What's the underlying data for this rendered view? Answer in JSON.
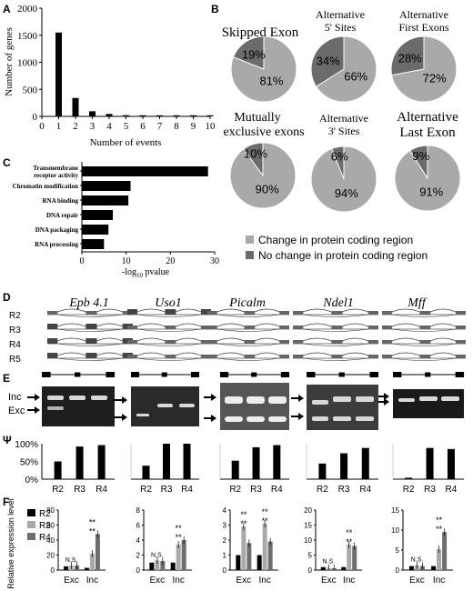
{
  "colors": {
    "bar": "#000000",
    "pie_light": "#a9a9a9",
    "pie_dark": "#6b6b6b",
    "gel_bg": "#1e1e1e",
    "series_R2": "#000000",
    "series_R3": "#a9a9a9",
    "series_R4": "#6e6e6e"
  },
  "panel_labels": [
    "A",
    "B",
    "C",
    "D",
    "E",
    "Ψ",
    "F"
  ],
  "panelA": {
    "chart_data": {
      "type": "bar",
      "categories": [
        "1",
        "2",
        "3",
        "4",
        "5",
        "6",
        "7",
        "8",
        "9",
        "10"
      ],
      "values": [
        1550,
        340,
        95,
        45,
        22,
        12,
        8,
        5,
        3,
        2
      ],
      "xticks": [
        "0",
        "1",
        "2",
        "3",
        "4",
        "5",
        "6",
        "7",
        "8",
        "9",
        "10"
      ],
      "xlabel": "Number of events",
      "ylabel": "Number of genes",
      "yticks": [
        "0",
        "500",
        "1000",
        "1500",
        "2000"
      ],
      "ylim": [
        0,
        2000
      ],
      "xlim": [
        0,
        10
      ]
    }
  },
  "panelB": {
    "chart_data": {
      "type": "pie",
      "charts": [
        {
          "title": "Skipped Exon",
          "changed": 81,
          "unchanged": 19,
          "changed_label": "81%",
          "unchanged_label": "19%"
        },
        {
          "title_lines": [
            "Alternative",
            "5' Sites"
          ],
          "changed": 66,
          "unchanged": 34,
          "changed_label": "66%",
          "unchanged_label": "34%"
        },
        {
          "title_lines": [
            "Alternative",
            "First Exons"
          ],
          "changed": 72,
          "unchanged": 28,
          "changed_label": "72%",
          "unchanged_label": "28%"
        },
        {
          "title_lines": [
            "Mutually",
            "exclusive exons"
          ],
          "changed": 90,
          "unchanged": 10,
          "changed_label": "90%",
          "unchanged_label": "10%"
        },
        {
          "title_lines": [
            "Alternative",
            "3' Sites"
          ],
          "changed": 94,
          "unchanged": 6,
          "changed_label": "94%",
          "unchanged_label": "6%"
        },
        {
          "title_lines": [
            "Alternative",
            "Last Exon"
          ],
          "changed": 91,
          "unchanged": 9,
          "changed_label": "91%",
          "unchanged_label": "9%"
        }
      ],
      "legend": [
        "Change in protein coding region",
        "No change in protein coding region"
      ]
    }
  },
  "panelC": {
    "chart_data": {
      "type": "bar",
      "orientation": "horizontal",
      "categories": [
        "Transmembrane receptor activity",
        "Chromatin modification",
        "RNA binding",
        "DNA repair",
        "DNA packaging",
        "RNA processing"
      ],
      "category_lines": [
        [
          "Transmembrane",
          "receptor activity"
        ],
        [
          "Chromatin modification"
        ],
        [
          "RNA binding"
        ],
        [
          "DNA repair"
        ],
        [
          "DNA packaging"
        ],
        [
          "RNA processing"
        ]
      ],
      "values": [
        28.5,
        11,
        10.5,
        7,
        6,
        5
      ],
      "xticks": [
        "0",
        "10",
        "20",
        "30"
      ],
      "xlim": [
        0,
        30
      ],
      "xlabel_prefix": "-log",
      "xlabel_sub": "10",
      "xlabel_suffix": " pvalue"
    }
  },
  "panelD": {
    "genes": [
      "Epb 4.1",
      "Uso1",
      "Picalm",
      "Ndel1",
      "Mff"
    ],
    "rows": [
      "R2",
      "R3",
      "R4",
      "R5"
    ]
  },
  "panelE": {
    "inc_label": "Inc",
    "exc_label": "Exc"
  },
  "panelPsi": {
    "chart_data": {
      "type": "bar",
      "categories": [
        "R2",
        "R3",
        "R4"
      ],
      "yticks": [
        "0%",
        "50%",
        "100%"
      ],
      "ylim": [
        0,
        100
      ],
      "series": [
        {
          "values": [
            50,
            92,
            96
          ]
        },
        {
          "values": [
            38,
            100,
            100
          ]
        },
        {
          "values": [
            52,
            90,
            96
          ]
        },
        {
          "values": [
            44,
            73,
            88
          ]
        },
        {
          "values": [
            4,
            88,
            85
          ]
        }
      ]
    }
  },
  "panelF": {
    "ylabel": "Relative expression level",
    "legend": [
      "R2",
      "R3",
      "R4"
    ],
    "groups": [
      "Exc",
      "Inc"
    ],
    "ns": "N.S.",
    "sig": "**",
    "chart_data": {
      "type": "bar",
      "subplots": [
        {
          "yticks": [
            "0",
            "20",
            "40",
            "60",
            "80"
          ],
          "ylim": [
            0,
            80
          ],
          "Exc": [
            5,
            6,
            6
          ],
          "Inc": [
            3,
            22,
            48
          ]
        },
        {
          "yticks": [
            "0",
            "2",
            "4",
            "6",
            "8"
          ],
          "ylim": [
            0,
            8
          ],
          "Exc": [
            1,
            1.3,
            1.2
          ],
          "Inc": [
            1,
            3.4,
            4
          ]
        },
        {
          "yticks": [
            "0",
            "1",
            "2",
            "3",
            "4"
          ],
          "ylim": [
            0,
            4
          ],
          "Exc": [
            1,
            2.9,
            1.8
          ],
          "Inc": [
            1,
            3.1,
            1.9
          ]
        },
        {
          "yticks": [
            "0",
            "5",
            "10",
            "15",
            "20"
          ],
          "ylim": [
            0,
            20
          ],
          "Exc": [
            1,
            0.7,
            0.6
          ],
          "Inc": [
            1,
            8.5,
            8
          ]
        },
        {
          "yticks": [
            "0",
            "5",
            "10",
            "15"
          ],
          "ylim": [
            0,
            15
          ],
          "Exc": [
            1,
            1.2,
            1
          ],
          "Inc": [
            1,
            5.2,
            9.5
          ]
        }
      ]
    }
  }
}
